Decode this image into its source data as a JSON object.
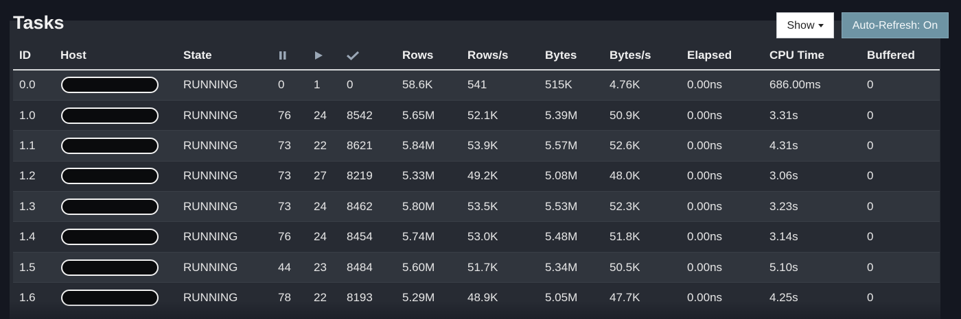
{
  "title": "Tasks",
  "toolbar": {
    "show_label": "Show",
    "auto_refresh_label": "Auto-Refresh: On"
  },
  "icons": {
    "queued": "pause-icon",
    "running": "play-icon",
    "finished": "check-icon"
  },
  "columns": {
    "id": "ID",
    "host": "Host",
    "state": "State",
    "rows": "Rows",
    "rows_per_sec": "Rows/s",
    "bytes": "Bytes",
    "bytes_per_sec": "Bytes/s",
    "elapsed": "Elapsed",
    "cpu_time": "CPU Time",
    "buffered": "Buffered"
  },
  "tasks": [
    {
      "id": "0.0",
      "state": "RUNNING",
      "queued": "0",
      "running": "1",
      "finished": "0",
      "rows": "58.6K",
      "rows_per_sec": "541",
      "bytes": "515K",
      "bytes_per_sec": "4.76K",
      "elapsed": "0.00ns",
      "cpu_time": "686.00ms",
      "buffered": "0"
    },
    {
      "id": "1.0",
      "state": "RUNNING",
      "queued": "76",
      "running": "24",
      "finished": "8542",
      "rows": "5.65M",
      "rows_per_sec": "52.1K",
      "bytes": "5.39M",
      "bytes_per_sec": "50.9K",
      "elapsed": "0.00ns",
      "cpu_time": "3.31s",
      "buffered": "0"
    },
    {
      "id": "1.1",
      "state": "RUNNING",
      "queued": "73",
      "running": "22",
      "finished": "8621",
      "rows": "5.84M",
      "rows_per_sec": "53.9K",
      "bytes": "5.57M",
      "bytes_per_sec": "52.6K",
      "elapsed": "0.00ns",
      "cpu_time": "4.31s",
      "buffered": "0"
    },
    {
      "id": "1.2",
      "state": "RUNNING",
      "queued": "73",
      "running": "27",
      "finished": "8219",
      "rows": "5.33M",
      "rows_per_sec": "49.2K",
      "bytes": "5.08M",
      "bytes_per_sec": "48.0K",
      "elapsed": "0.00ns",
      "cpu_time": "3.06s",
      "buffered": "0"
    },
    {
      "id": "1.3",
      "state": "RUNNING",
      "queued": "73",
      "running": "24",
      "finished": "8462",
      "rows": "5.80M",
      "rows_per_sec": "53.5K",
      "bytes": "5.53M",
      "bytes_per_sec": "52.3K",
      "elapsed": "0.00ns",
      "cpu_time": "3.23s",
      "buffered": "0"
    },
    {
      "id": "1.4",
      "state": "RUNNING",
      "queued": "76",
      "running": "24",
      "finished": "8454",
      "rows": "5.74M",
      "rows_per_sec": "53.0K",
      "bytes": "5.48M",
      "bytes_per_sec": "51.8K",
      "elapsed": "0.00ns",
      "cpu_time": "3.14s",
      "buffered": "0"
    },
    {
      "id": "1.5",
      "state": "RUNNING",
      "queued": "44",
      "running": "23",
      "finished": "8484",
      "rows": "5.60M",
      "rows_per_sec": "51.7K",
      "bytes": "5.34M",
      "bytes_per_sec": "50.5K",
      "elapsed": "0.00ns",
      "cpu_time": "5.10s",
      "buffered": "0"
    },
    {
      "id": "1.6",
      "state": "RUNNING",
      "queued": "78",
      "running": "22",
      "finished": "8193",
      "rows": "5.29M",
      "rows_per_sec": "48.9K",
      "bytes": "5.05M",
      "bytes_per_sec": "47.7K",
      "elapsed": "0.00ns",
      "cpu_time": "4.25s",
      "buffered": "0"
    }
  ]
}
